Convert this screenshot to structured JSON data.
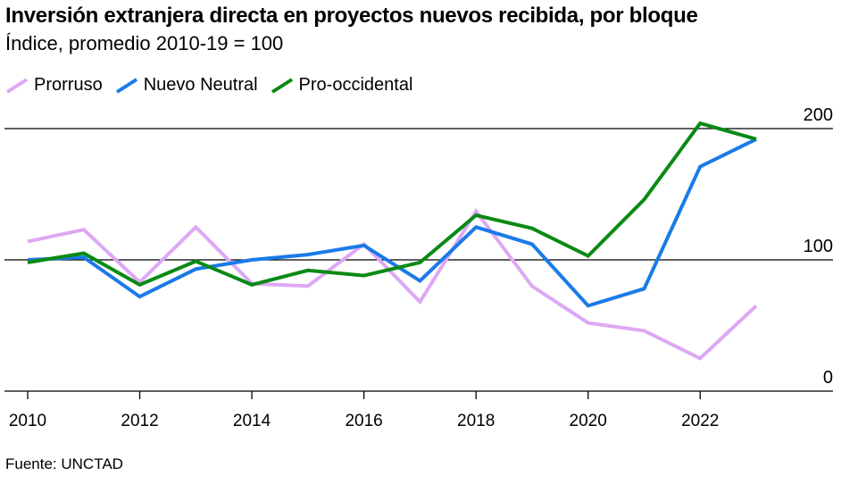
{
  "title": "Inversión extranjera directa en proyectos nuevos recibida, por bloque",
  "subtitle": "Índice, promedio 2010-19 = 100",
  "source": "Fuente: UNCTAD",
  "chart_data": {
    "type": "line",
    "title": "Inversión extranjera directa en proyectos nuevos recibida, por bloque",
    "subtitle": "Índice, promedio 2010-19 = 100",
    "x": [
      2010,
      2011,
      2012,
      2013,
      2014,
      2015,
      2016,
      2017,
      2018,
      2019,
      2020,
      2021,
      2022,
      2023
    ],
    "xticks": [
      2010,
      2012,
      2014,
      2016,
      2018,
      2020,
      2022
    ],
    "xtick_labels": [
      "2010",
      "2012",
      "2014",
      "2016",
      "2018",
      "2020",
      "2022"
    ],
    "yticks": [
      0,
      100,
      200
    ],
    "ytick_labels": [
      "0",
      "100",
      "200"
    ],
    "ylim": [
      0,
      200
    ],
    "grid": "horizontal at 0, 100, 200",
    "legend_position": "top-left",
    "series": [
      {
        "name": "Prorruso",
        "color": "#dda8f5",
        "values": [
          114,
          123,
          83,
          125,
          82,
          80,
          112,
          68,
          137,
          80,
          52,
          46,
          25,
          65
        ]
      },
      {
        "name": "Nuevo Neutral",
        "color": "#1a7ae8",
        "values": [
          100,
          102,
          72,
          93,
          100,
          104,
          111,
          84,
          125,
          112,
          65,
          78,
          171,
          192
        ]
      },
      {
        "name": "Pro-occidental",
        "color": "#0a8a14",
        "values": [
          98,
          105,
          81,
          99,
          81,
          92,
          88,
          98,
          134,
          124,
          103,
          146,
          204,
          192
        ]
      }
    ]
  }
}
